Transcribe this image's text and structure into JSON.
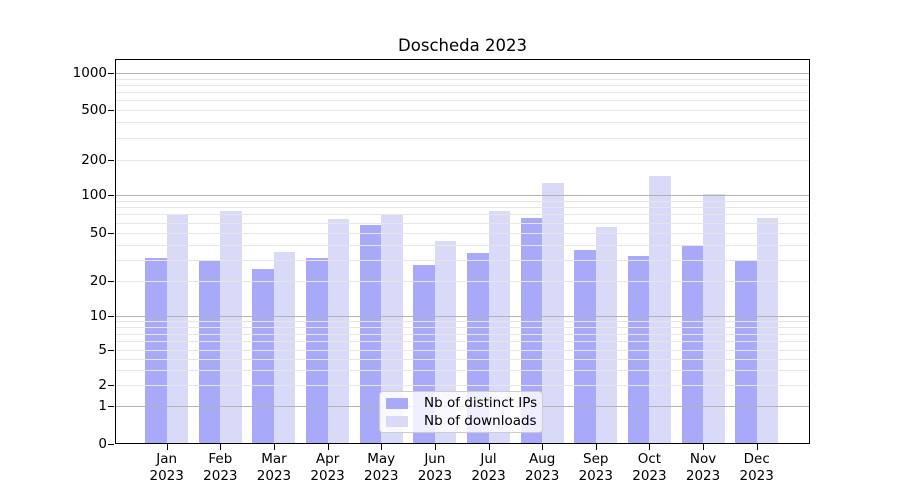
{
  "chart_data": {
    "type": "bar",
    "title": "Doscheda 2023",
    "categories": [
      "Jan 2023",
      "Feb 2023",
      "Mar 2023",
      "Apr 2023",
      "May 2023",
      "Jun 2023",
      "Jul 2023",
      "Aug 2023",
      "Sep 2023",
      "Oct 2023",
      "Nov 2023",
      "Dec 2023"
    ],
    "series": [
      {
        "name": "Nb of distinct IPs",
        "color": "#a9a9fa",
        "values": [
          31,
          29,
          25,
          31,
          58,
          27,
          34,
          66,
          36,
          32,
          40,
          30
        ]
      },
      {
        "name": "Nb of downloads",
        "color": "#d9d9f8",
        "values": [
          70,
          74,
          35,
          64,
          70,
          43,
          75,
          126,
          56,
          144,
          101,
          66
        ]
      }
    ],
    "xlabel": "",
    "ylabel": "",
    "yscale": "symlog",
    "ylim": [
      0,
      1300
    ],
    "yticks": [
      0,
      1,
      2,
      5,
      10,
      20,
      50,
      100,
      200,
      500,
      1000
    ],
    "ytick_fractions_from_top": [
      1.0,
      0.9023,
      0.846,
      0.7569,
      0.6668,
      0.5758,
      0.4519,
      0.3525,
      0.2616,
      0.1317,
      0.0364
    ],
    "y_major_ticks": [
      1,
      10,
      100,
      1000
    ],
    "y_minor_ticks": [
      3,
      4,
      6,
      7,
      8,
      9,
      30,
      40,
      60,
      70,
      80,
      90,
      300,
      400,
      600,
      700,
      800,
      900
    ],
    "grid": {
      "on": true,
      "major_color": "#b2b2b2",
      "minor_color": "#e6e6e6"
    },
    "legend": {
      "position": "lower center",
      "frame_color": "#cccccc"
    }
  }
}
